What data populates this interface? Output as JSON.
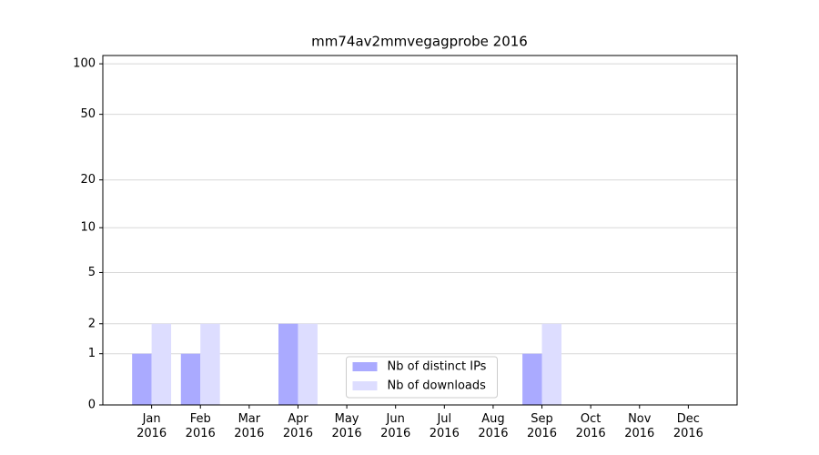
{
  "chart_data": {
    "type": "bar",
    "title": "mm74av2mmvegagprobe 2016",
    "categories": [
      "Jan\n2016",
      "Feb\n2016",
      "Mar\n2016",
      "Apr\n2016",
      "May\n2016",
      "Jun\n2016",
      "Jul\n2016",
      "Aug\n2016",
      "Sep\n2016",
      "Oct\n2016",
      "Nov\n2016",
      "Dec\n2016"
    ],
    "series": [
      {
        "name": "Nb of distinct IPs",
        "color": "#aaaaff",
        "values": [
          1,
          1,
          0,
          2,
          0,
          0,
          0,
          0,
          1,
          0,
          0,
          0
        ]
      },
      {
        "name": "Nb of downloads",
        "color": "#ddddff",
        "values": [
          2,
          2,
          0,
          2,
          0,
          0,
          0,
          0,
          2,
          0,
          0,
          0
        ]
      }
    ],
    "y_scale": "log1p",
    "ylim": [
      0,
      112
    ],
    "yticks": [
      0,
      1,
      2,
      5,
      10,
      20,
      50,
      100
    ],
    "grid": true,
    "legend": "lower center"
  }
}
